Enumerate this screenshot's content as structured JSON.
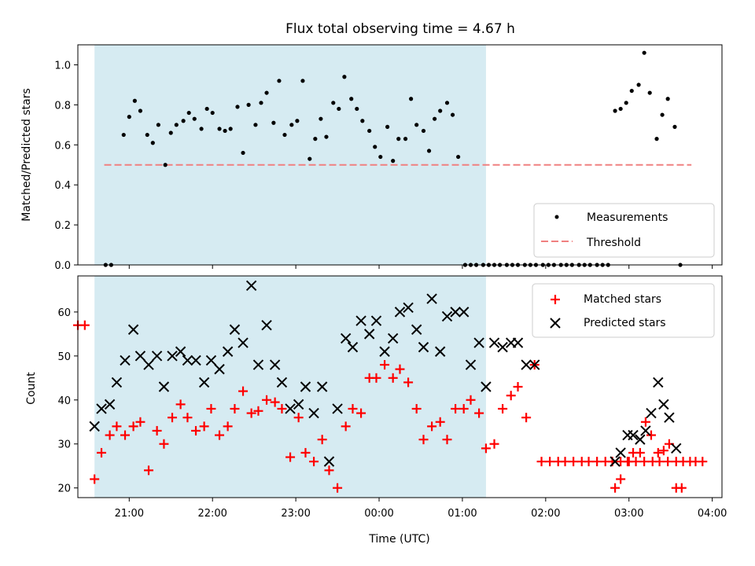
{
  "figure": {
    "title": "Flux total observing time = 4.67 h",
    "top_ylabel": "Matched/Predicted stars",
    "bottom_ylabel": "Count",
    "xlabel": "Time (UTC)",
    "x_ticks": [
      "21:00",
      "22:00",
      "23:00",
      "00:00",
      "01:00",
      "02:00",
      "03:00",
      "04:00"
    ],
    "top_y_ticks": [
      "0.0",
      "0.2",
      "0.4",
      "0.6",
      "0.8",
      "1.0"
    ],
    "bottom_y_ticks": [
      "20",
      "30",
      "40",
      "50",
      "60"
    ],
    "legend_top": [
      "Measurements",
      "Threshold"
    ],
    "legend_bottom": [
      "Matched stars",
      "Predicted stars"
    ]
  },
  "colors": {
    "measurements": "#000000",
    "threshold": "#f08080",
    "matched": "#ff0000",
    "predicted": "#000000",
    "shade": "#add8e6"
  },
  "chart_data": [
    {
      "type": "scatter",
      "title": "Flux total observing time = 4.67 h",
      "xlabel": "",
      "ylabel": "Matched/Predicted stars",
      "xlim": [
        "20:23",
        "04:07"
      ],
      "ylim": [
        0,
        1.1
      ],
      "observing_window": [
        "20:35",
        "01:17"
      ],
      "threshold": {
        "name": "Threshold",
        "value": 0.5,
        "x_range": [
          "20:42",
          "03:45"
        ]
      },
      "series": [
        {
          "name": "Measurements",
          "points": [
            [
              "20:43",
              0
            ],
            [
              "20:47",
              0
            ],
            [
              "20:56",
              0.65
            ],
            [
              "21:00",
              0.74
            ],
            [
              "21:04",
              0.82
            ],
            [
              "21:08",
              0.77
            ],
            [
              "21:13",
              0.65
            ],
            [
              "21:17",
              0.61
            ],
            [
              "21:21",
              0.7
            ],
            [
              "21:26",
              0.5
            ],
            [
              "21:30",
              0.66
            ],
            [
              "21:34",
              0.7
            ],
            [
              "21:39",
              0.72
            ],
            [
              "21:43",
              0.76
            ],
            [
              "21:47",
              0.73
            ],
            [
              "21:52",
              0.68
            ],
            [
              "21:56",
              0.78
            ],
            [
              "22:00",
              0.76
            ],
            [
              "22:05",
              0.68
            ],
            [
              "22:09",
              0.67
            ],
            [
              "22:13",
              0.68
            ],
            [
              "22:18",
              0.79
            ],
            [
              "22:22",
              0.56
            ],
            [
              "22:26",
              0.8
            ],
            [
              "22:31",
              0.7
            ],
            [
              "22:35",
              0.81
            ],
            [
              "22:39",
              0.86
            ],
            [
              "22:44",
              0.71
            ],
            [
              "22:48",
              0.92
            ],
            [
              "22:52",
              0.65
            ],
            [
              "22:57",
              0.7
            ],
            [
              "23:01",
              0.72
            ],
            [
              "23:05",
              0.92
            ],
            [
              "23:10",
              0.53
            ],
            [
              "23:14",
              0.63
            ],
            [
              "23:18",
              0.73
            ],
            [
              "23:22",
              0.64
            ],
            [
              "23:27",
              0.81
            ],
            [
              "23:31",
              0.78
            ],
            [
              "23:35",
              0.94
            ],
            [
              "23:40",
              0.83
            ],
            [
              "23:44",
              0.78
            ],
            [
              "23:48",
              0.72
            ],
            [
              "23:53",
              0.67
            ],
            [
              "23:57",
              0.59
            ],
            [
              "00:01",
              0.54
            ],
            [
              "00:06",
              0.69
            ],
            [
              "00:10",
              0.52
            ],
            [
              "00:14",
              0.63
            ],
            [
              "00:19",
              0.63
            ],
            [
              "00:23",
              0.83
            ],
            [
              "00:27",
              0.7
            ],
            [
              "00:32",
              0.67
            ],
            [
              "00:36",
              0.57
            ],
            [
              "00:40",
              0.73
            ],
            [
              "00:44",
              0.77
            ],
            [
              "00:49",
              0.81
            ],
            [
              "00:53",
              0.75
            ],
            [
              "00:57",
              0.54
            ],
            [
              "01:02",
              0
            ],
            [
              "01:06",
              0
            ],
            [
              "01:10",
              0
            ],
            [
              "01:15",
              0
            ],
            [
              "01:19",
              0
            ],
            [
              "01:23",
              0
            ],
            [
              "01:27",
              0
            ],
            [
              "01:32",
              0
            ],
            [
              "01:36",
              0
            ],
            [
              "01:40",
              0
            ],
            [
              "01:45",
              0
            ],
            [
              "01:49",
              0
            ],
            [
              "01:53",
              0
            ],
            [
              "01:58",
              0
            ],
            [
              "02:02",
              0
            ],
            [
              "02:06",
              0
            ],
            [
              "02:11",
              0
            ],
            [
              "02:15",
              0
            ],
            [
              "02:19",
              0
            ],
            [
              "02:24",
              0
            ],
            [
              "02:28",
              0
            ],
            [
              "02:32",
              0
            ],
            [
              "02:37",
              0
            ],
            [
              "02:41",
              0
            ],
            [
              "02:45",
              0
            ],
            [
              "02:50",
              0.77
            ],
            [
              "02:54",
              0.78
            ],
            [
              "02:58",
              0.81
            ],
            [
              "03:02",
              0.87
            ],
            [
              "03:07",
              0.9
            ],
            [
              "03:11",
              1.06
            ],
            [
              "03:15",
              0.86
            ],
            [
              "03:20",
              0.63
            ],
            [
              "03:24",
              0.75
            ],
            [
              "03:28",
              0.83
            ],
            [
              "03:33",
              0.69
            ],
            [
              "03:37",
              0
            ]
          ]
        }
      ]
    },
    {
      "type": "scatter",
      "title": "",
      "xlabel": "Time (UTC)",
      "ylabel": "Count",
      "xlim": [
        "20:23",
        "04:07"
      ],
      "ylim": [
        17.8,
        68.2
      ],
      "observing_window": [
        "20:35",
        "01:17"
      ],
      "series": [
        {
          "name": "Matched stars",
          "marker": "plus",
          "points": [
            [
              "20:23",
              57
            ],
            [
              "20:28",
              57
            ],
            [
              "20:35",
              22
            ],
            [
              "20:40",
              28
            ],
            [
              "20:46",
              32
            ],
            [
              "20:51",
              34
            ],
            [
              "20:57",
              32
            ],
            [
              "21:03",
              34
            ],
            [
              "21:08",
              35
            ],
            [
              "21:14",
              24
            ],
            [
              "21:20",
              33
            ],
            [
              "21:25",
              30
            ],
            [
              "21:31",
              36
            ],
            [
              "21:37",
              39
            ],
            [
              "21:42",
              36
            ],
            [
              "21:48",
              33
            ],
            [
              "21:54",
              34
            ],
            [
              "21:59",
              38
            ],
            [
              "22:05",
              32
            ],
            [
              "22:11",
              34
            ],
            [
              "22:16",
              38
            ],
            [
              "22:22",
              42
            ],
            [
              "22:28",
              37
            ],
            [
              "22:33",
              37.5
            ],
            [
              "22:39",
              40
            ],
            [
              "22:45",
              39.5
            ],
            [
              "22:50",
              38
            ],
            [
              "22:56",
              27
            ],
            [
              "23:02",
              36
            ],
            [
              "23:07",
              28
            ],
            [
              "23:13",
              26
            ],
            [
              "23:19",
              31
            ],
            [
              "23:24",
              24
            ],
            [
              "23:30",
              20
            ],
            [
              "23:36",
              34
            ],
            [
              "23:41",
              38
            ],
            [
              "23:47",
              37
            ],
            [
              "23:53",
              45
            ],
            [
              "23:58",
              45
            ],
            [
              "00:04",
              48
            ],
            [
              "00:10",
              45
            ],
            [
              "00:15",
              47
            ],
            [
              "00:21",
              44
            ],
            [
              "00:27",
              38
            ],
            [
              "00:32",
              31
            ],
            [
              "00:38",
              34
            ],
            [
              "00:44",
              35
            ],
            [
              "00:49",
              31
            ],
            [
              "00:55",
              38
            ],
            [
              "01:01",
              38
            ],
            [
              "01:06",
              40
            ],
            [
              "01:12",
              37
            ],
            [
              "01:17",
              29
            ],
            [
              "01:23",
              30
            ],
            [
              "01:29",
              38
            ],
            [
              "01:35",
              41
            ],
            [
              "01:40",
              43
            ],
            [
              "01:46",
              36
            ],
            [
              "01:52",
              48
            ],
            [
              "01:57",
              26
            ],
            [
              "02:03",
              26
            ],
            [
              "02:09",
              26
            ],
            [
              "02:14",
              26
            ],
            [
              "02:20",
              26
            ],
            [
              "02:26",
              26
            ],
            [
              "02:31",
              26
            ],
            [
              "02:37",
              26
            ],
            [
              "02:43",
              26
            ],
            [
              "02:48",
              26
            ],
            [
              "02:54",
              26
            ],
            [
              "03:00",
              26
            ],
            [
              "03:05",
              26
            ],
            [
              "03:11",
              26
            ],
            [
              "03:17",
              26
            ],
            [
              "03:22",
              26
            ],
            [
              "03:28",
              26
            ],
            [
              "03:34",
              26
            ],
            [
              "03:39",
              26
            ],
            [
              "03:44",
              26
            ],
            [
              "03:48",
              26
            ],
            [
              "03:53",
              26
            ],
            [
              "02:50",
              20
            ],
            [
              "02:54",
              22
            ],
            [
              "02:59",
              26
            ],
            [
              "03:03",
              28
            ],
            [
              "03:08",
              28
            ],
            [
              "03:12",
              35
            ],
            [
              "03:16",
              32
            ],
            [
              "03:21",
              28
            ],
            [
              "03:25",
              28.5
            ],
            [
              "03:29",
              30
            ],
            [
              "03:34",
              20
            ],
            [
              "03:38",
              20
            ]
          ]
        },
        {
          "name": "Predicted stars",
          "marker": "x",
          "points": [
            [
              "20:35",
              34
            ],
            [
              "20:40",
              38
            ],
            [
              "20:46",
              39
            ],
            [
              "20:51",
              44
            ],
            [
              "20:57",
              49
            ],
            [
              "21:03",
              56
            ],
            [
              "21:08",
              50
            ],
            [
              "21:14",
              48
            ],
            [
              "21:20",
              50
            ],
            [
              "21:25",
              43
            ],
            [
              "21:31",
              50
            ],
            [
              "21:37",
              51
            ],
            [
              "21:42",
              49
            ],
            [
              "21:48",
              49
            ],
            [
              "21:54",
              44
            ],
            [
              "21:59",
              49
            ],
            [
              "22:05",
              47
            ],
            [
              "22:11",
              51
            ],
            [
              "22:16",
              56
            ],
            [
              "22:22",
              53
            ],
            [
              "22:28",
              66
            ],
            [
              "22:33",
              48
            ],
            [
              "22:39",
              57
            ],
            [
              "22:45",
              48
            ],
            [
              "22:50",
              44
            ],
            [
              "22:56",
              38
            ],
            [
              "23:02",
              39
            ],
            [
              "23:07",
              43
            ],
            [
              "23:13",
              37
            ],
            [
              "23:19",
              43
            ],
            [
              "23:24",
              26
            ],
            [
              "23:30",
              38
            ],
            [
              "23:36",
              54
            ],
            [
              "23:41",
              52
            ],
            [
              "23:47",
              58
            ],
            [
              "23:53",
              55
            ],
            [
              "23:58",
              58
            ],
            [
              "00:04",
              51
            ],
            [
              "00:10",
              54
            ],
            [
              "00:15",
              60
            ],
            [
              "00:21",
              61
            ],
            [
              "00:27",
              56
            ],
            [
              "00:32",
              52
            ],
            [
              "00:38",
              63
            ],
            [
              "00:44",
              51
            ],
            [
              "00:49",
              59
            ],
            [
              "00:55",
              60
            ],
            [
              "01:01",
              60
            ],
            [
              "01:06",
              48
            ],
            [
              "01:12",
              53
            ],
            [
              "01:17",
              43
            ],
            [
              "01:23",
              53
            ],
            [
              "01:29",
              52
            ],
            [
              "01:35",
              53
            ],
            [
              "01:40",
              53
            ],
            [
              "01:46",
              48
            ],
            [
              "01:52",
              48
            ],
            [
              "02:50",
              26
            ],
            [
              "02:54",
              28
            ],
            [
              "02:59",
              32
            ],
            [
              "03:03",
              32
            ],
            [
              "03:08",
              31
            ],
            [
              "03:12",
              33
            ],
            [
              "03:16",
              37
            ],
            [
              "03:21",
              44
            ],
            [
              "03:25",
              39
            ],
            [
              "03:29",
              36
            ],
            [
              "03:34",
              29
            ]
          ]
        }
      ]
    }
  ]
}
